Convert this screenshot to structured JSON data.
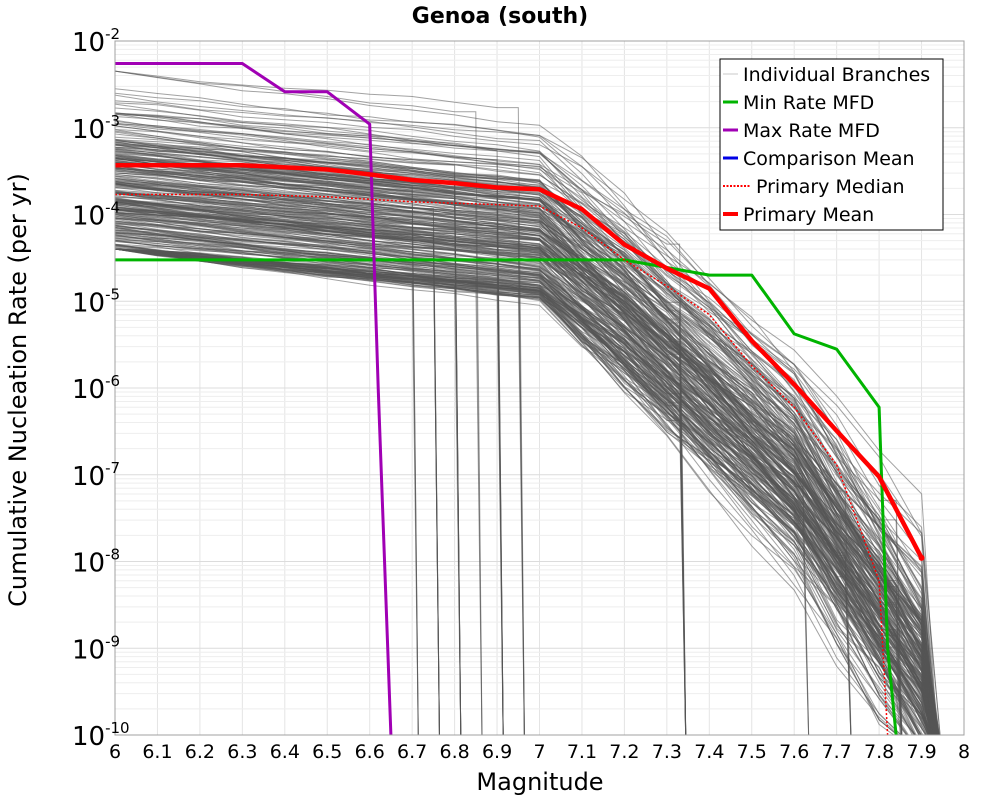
{
  "chart_data": {
    "type": "line",
    "title": "Genoa (south)",
    "xlabel": "Magnitude",
    "ylabel": "Cumulative Nucleation Rate (per yr)",
    "xlim": [
      6,
      8
    ],
    "ylim": [
      1e-10,
      0.01
    ],
    "y_scale": "log",
    "x_ticks": [
      "6",
      "6.1",
      "6.2",
      "6.3",
      "6.4",
      "6.5",
      "6.6",
      "6.7",
      "6.8",
      "6.9",
      "7",
      "7.1",
      "7.2",
      "7.3",
      "7.4",
      "7.5",
      "7.6",
      "7.7",
      "7.8",
      "7.9",
      "8"
    ],
    "y_ticks": [
      {
        "value": 0.01,
        "base": "10",
        "exp": "-2"
      },
      {
        "value": 0.001,
        "base": "10",
        "exp": "-3"
      },
      {
        "value": 0.0001,
        "base": "10",
        "exp": "-4"
      },
      {
        "value": 1e-05,
        "base": "10",
        "exp": "-5"
      },
      {
        "value": 1e-06,
        "base": "10",
        "exp": "-6"
      },
      {
        "value": 1e-07,
        "base": "10",
        "exp": "-7"
      },
      {
        "value": 1e-08,
        "base": "10",
        "exp": "-8"
      },
      {
        "value": 1e-09,
        "base": "10",
        "exp": "-9"
      },
      {
        "value": 1e-10,
        "base": "10",
        "exp": "-10"
      }
    ],
    "grid": true,
    "legend_position": "top-right",
    "legend": [
      {
        "label": "Individual Branches",
        "color": "#c8c8c8",
        "style": "solid"
      },
      {
        "label": "Min Rate MFD",
        "color": "#00b400",
        "style": "solid"
      },
      {
        "label": "Max Rate MFD",
        "color": "#a000b4",
        "style": "solid"
      },
      {
        "label": "Comparison Mean",
        "color": "#0000e6",
        "style": "solid"
      },
      {
        "label": "Primary Median",
        "color": "#ff0000",
        "style": "dotted"
      },
      {
        "label": "Primary Mean",
        "color": "#ff0000",
        "style": "thick"
      }
    ],
    "series": [
      {
        "name": "Min Rate MFD",
        "color": "#00b400",
        "x": [
          6.0,
          7.2,
          7.4,
          7.5,
          7.6,
          7.7,
          7.8,
          7.82,
          7.84
        ],
        "y": [
          3e-05,
          3e-05,
          2e-05,
          2e-05,
          4.2e-06,
          2.8e-06,
          6e-07,
          1e-09,
          1e-10
        ]
      },
      {
        "name": "Max Rate MFD",
        "color": "#a000b4",
        "x": [
          6.0,
          6.3,
          6.4,
          6.5,
          6.6,
          6.62,
          6.65
        ],
        "y": [
          0.0055,
          0.0055,
          0.0026,
          0.0026,
          0.0011,
          1e-06,
          1e-10
        ]
      },
      {
        "name": "Primary Median",
        "color": "#ff0000",
        "x": [
          6.0,
          6.3,
          6.5,
          6.7,
          6.9,
          7.0,
          7.1,
          7.2,
          7.3,
          7.4,
          7.5,
          7.6,
          7.7,
          7.8,
          7.82
        ],
        "y": [
          0.00017,
          0.00017,
          0.00016,
          0.00014,
          0.00013,
          0.000125,
          7e-05,
          3e-05,
          1.5e-05,
          7e-06,
          1.8e-06,
          6e-07,
          1.3e-07,
          6e-09,
          1e-10
        ]
      },
      {
        "name": "Primary Mean",
        "color": "#ff0000",
        "x": [
          6.0,
          6.3,
          6.5,
          6.6,
          6.7,
          6.8,
          6.9,
          7.0,
          7.1,
          7.2,
          7.3,
          7.4,
          7.5,
          7.6,
          7.7,
          7.8,
          7.9
        ],
        "y": [
          0.00037,
          0.00037,
          0.00033,
          0.00029,
          0.00025,
          0.00023,
          0.000205,
          0.000195,
          0.000115,
          4.5e-05,
          2.4e-05,
          1.4e-05,
          3.5e-06,
          1.1e-06,
          3.2e-07,
          9.5e-08,
          1.1e-08
        ]
      }
    ],
    "branch_cliff_magnitudes": [
      6.7,
      6.75,
      6.8,
      6.85,
      6.9,
      6.95,
      7.33,
      7.62,
      7.72,
      7.84,
      7.92
    ]
  }
}
